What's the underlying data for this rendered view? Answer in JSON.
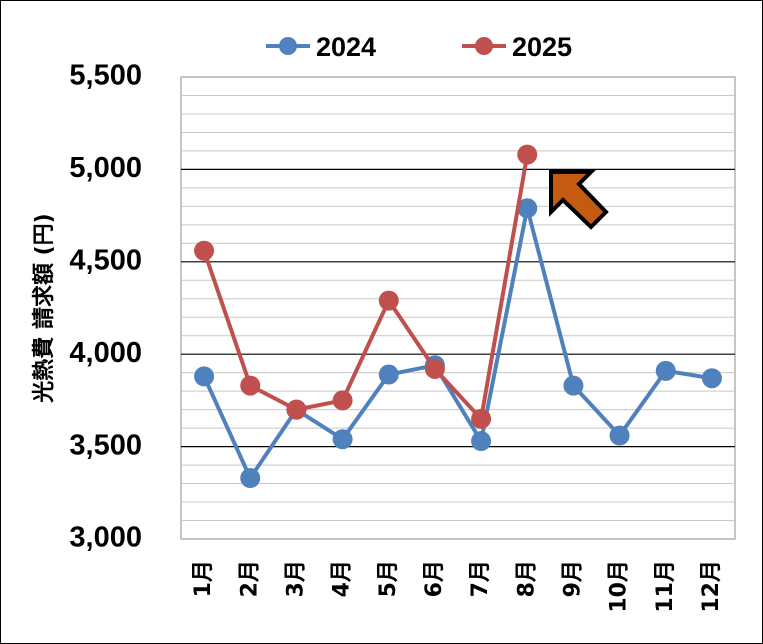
{
  "chart_data": {
    "type": "line",
    "ylabel": "光熱費 請求額 (円)",
    "xlabel": "",
    "title": "",
    "ylim": [
      3000,
      5500
    ],
    "yticks": [
      3000,
      3500,
      4000,
      4500,
      5000,
      5500
    ],
    "ytick_labels": [
      "3,000",
      "3,500",
      "4,000",
      "4,500",
      "5,000",
      "5,500"
    ],
    "minor_grid_step": 100,
    "categories": [
      "1月",
      "2月",
      "3月",
      "4月",
      "5月",
      "6月",
      "7月",
      "8月",
      "9月",
      "10月",
      "11月",
      "12月"
    ],
    "legend_position": "top",
    "series": [
      {
        "name": "2024",
        "color": "#4f81bd",
        "values": [
          3880,
          3330,
          3700,
          3540,
          3890,
          3940,
          3530,
          4790,
          3830,
          3560,
          3910,
          3870
        ]
      },
      {
        "name": "2025",
        "color": "#c0504d",
        "values": [
          4560,
          3830,
          3700,
          3750,
          4290,
          3920,
          3650,
          5080,
          null,
          null,
          null,
          null
        ]
      }
    ],
    "annotation": {
      "type": "arrow",
      "color": "#c55a11",
      "points_to_category": "8月",
      "points_to_series": "2025",
      "icon": "up-left-arrow-icon"
    }
  }
}
